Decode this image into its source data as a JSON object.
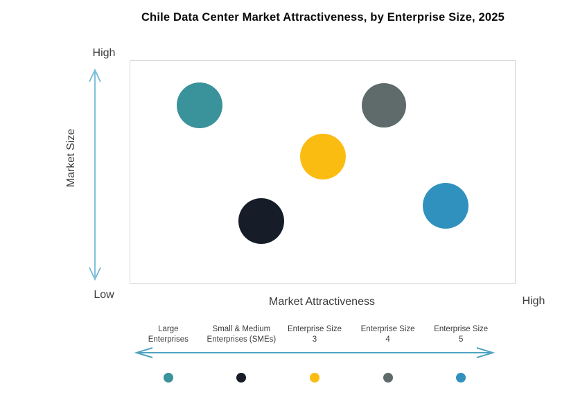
{
  "title": "Chile Data Center Market Attractiveness, by Enterprise Size, 2025",
  "axes": {
    "y_label": "Market Size",
    "y_high_label": "High",
    "y_low_label": "Low",
    "x_label": "Market Attractiveness",
    "x_high_label": "High"
  },
  "colors": {
    "axis_arrow": "#74B9D6",
    "legend_arrow": "#4FA3C2",
    "plot_border": "#D6D6D6",
    "title_text": "#0B0B0B",
    "axis_text": "#3B3B3B"
  },
  "chart_data": {
    "type": "scatter",
    "title": "Chile Data Center Market Attractiveness, by Enterprise Size, 2025",
    "xlabel": "Market Attractiveness",
    "ylabel": "Market Size",
    "x_range": [
      "Low",
      "High"
    ],
    "y_range": [
      "Low",
      "High"
    ],
    "axes_qualitative": true,
    "legend_position": "bottom",
    "series": [
      {
        "name": "Large Enterprises",
        "label_lines": [
          "Large",
          "Enterprises"
        ],
        "color": "#3A929B",
        "x": 0.18,
        "y": 0.8,
        "radius_px": 33
      },
      {
        "name": "Small & Medium Enterprises (SMEs)",
        "label_lines": [
          "Small & Medium",
          "Enterprises (SMEs)"
        ],
        "color": "#161D29",
        "x": 0.34,
        "y": 0.28,
        "radius_px": 33
      },
      {
        "name": "Enterprise Size 3",
        "label_lines": [
          "Enterprise Size",
          "3"
        ],
        "color": "#FBBC12",
        "x": 0.5,
        "y": 0.57,
        "radius_px": 33
      },
      {
        "name": "Enterprise Size 4",
        "label_lines": [
          "Enterprise Size",
          "4"
        ],
        "color": "#5F6B6B",
        "x": 0.66,
        "y": 0.8,
        "radius_px": 32
      },
      {
        "name": "Enterprise Size 5",
        "label_lines": [
          "Enterprise Size",
          "5"
        ],
        "color": "#3191BE",
        "x": 0.82,
        "y": 0.35,
        "radius_px": 33
      }
    ]
  }
}
